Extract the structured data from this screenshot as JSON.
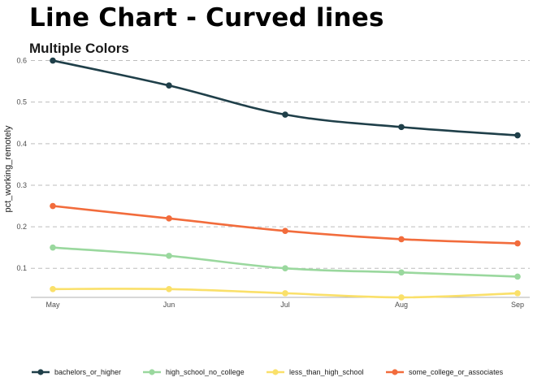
{
  "chart_data": {
    "type": "line",
    "title": "Line Chart - Curved lines",
    "subtitle": "Multiple Colors",
    "xlabel": "",
    "ylabel": "pct_working_remotely",
    "categories": [
      "May",
      "Jun",
      "Jul",
      "Aug",
      "Sep"
    ],
    "ylim": [
      0.03,
      0.605
    ],
    "yticks": [
      0.1,
      0.2,
      0.3,
      0.4,
      0.5,
      0.6
    ],
    "ytick_labels": [
      "0.1",
      "0.2",
      "0.3",
      "0.4",
      "0.5",
      "0.6"
    ],
    "grid": "horizontal dashed",
    "legend_position": "bottom",
    "series": [
      {
        "name": "bachelors_or_higher",
        "color": "#1f3f49",
        "values": [
          0.6,
          0.54,
          0.47,
          0.44,
          0.42
        ]
      },
      {
        "name": "high_school_no_college",
        "color": "#9ad89e",
        "values": [
          0.15,
          0.13,
          0.1,
          0.09,
          0.08
        ]
      },
      {
        "name": "less_than_high_school",
        "color": "#fae06a",
        "values": [
          0.05,
          0.05,
          0.04,
          0.03,
          0.04
        ]
      },
      {
        "name": "some_college_or_associates",
        "color": "#f26c3c",
        "values": [
          0.25,
          0.22,
          0.19,
          0.17,
          0.16
        ]
      }
    ]
  }
}
